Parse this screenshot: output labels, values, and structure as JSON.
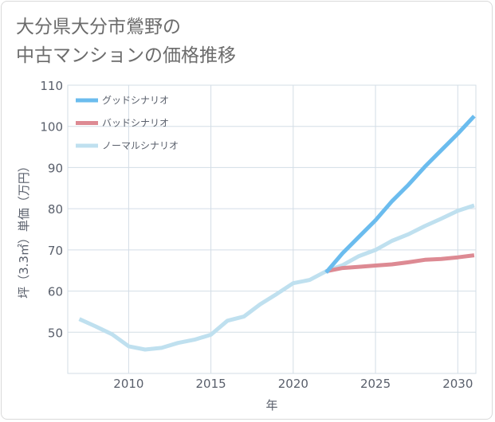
{
  "page": {
    "title_line1": "大分県大分市鶯野の",
    "title_line2": "中古マンションの価格推移"
  },
  "chart_data": {
    "type": "line",
    "xlabel": "年",
    "ylabel": "坪（3.3㎡）単価（万円）",
    "xlim": [
      2006.3,
      2031.1
    ],
    "ylim": [
      40,
      110
    ],
    "x_ticks": [
      2010,
      2015,
      2020,
      2025,
      2030
    ],
    "y_ticks": [
      50,
      60,
      70,
      80,
      90,
      100,
      110
    ],
    "grid": true,
    "legend_position": "top-left",
    "series": [
      {
        "name": "グッドシナリオ",
        "color": "#6bbcee",
        "x": [
          2022,
          2023,
          2024,
          2025,
          2026,
          2027,
          2028,
          2029,
          2030,
          2031
        ],
        "y": [
          64.5,
          69.2,
          73.2,
          77.2,
          81.8,
          85.8,
          90.2,
          94.2,
          98.2,
          102.5
        ]
      },
      {
        "name": "バッドシナリオ",
        "color": "#dd8a93",
        "x": [
          2022,
          2023,
          2024,
          2025,
          2026,
          2027,
          2028,
          2029,
          2030,
          2031
        ],
        "y": [
          64.8,
          65.6,
          65.9,
          66.2,
          66.5,
          67.0,
          67.6,
          67.8,
          68.2,
          68.7
        ]
      },
      {
        "name": "ノーマルシナリオ",
        "color": "#bfe0ef",
        "x": [
          2007,
          2008,
          2009,
          2010,
          2011,
          2012,
          2013,
          2014,
          2015,
          2016,
          2017,
          2018,
          2019,
          2020,
          2021,
          2022,
          2023,
          2024,
          2025,
          2026,
          2027,
          2028,
          2029,
          2030,
          2031
        ],
        "y": [
          53.2,
          51.4,
          49.5,
          46.6,
          45.8,
          46.2,
          47.4,
          48.2,
          49.4,
          52.8,
          53.8,
          56.8,
          59.3,
          61.9,
          62.7,
          64.8,
          66.3,
          68.5,
          70.0,
          72.2,
          73.8,
          75.8,
          77.6,
          79.5,
          80.8
        ]
      }
    ]
  }
}
